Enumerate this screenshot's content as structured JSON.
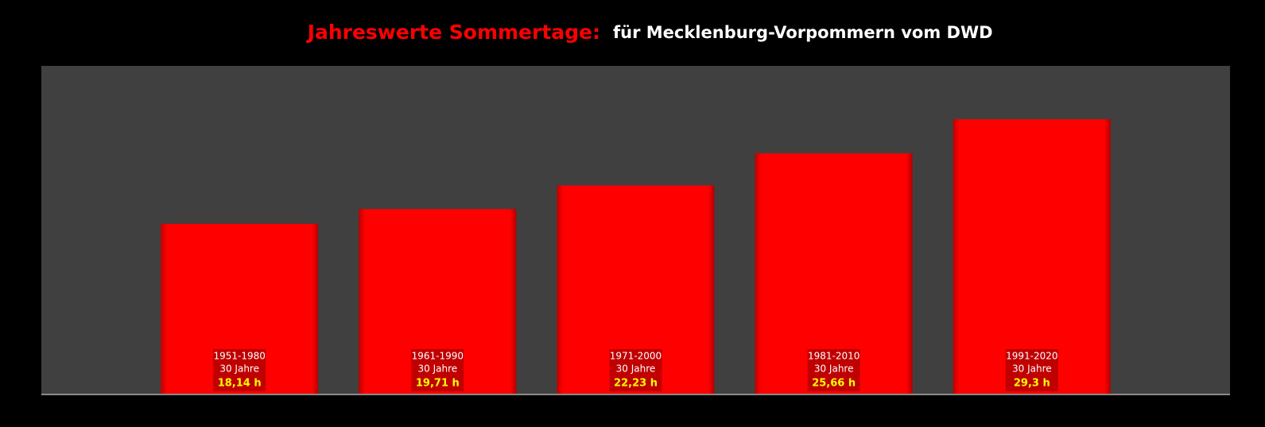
{
  "chart_data": {
    "type": "bar",
    "title": "Jahreswerte Sommertage:",
    "subtitle": "für Mecklenburg-Vorpommern vom DWD",
    "categories": [
      "1951-1980",
      "1961-1990",
      "1971-2000",
      "1981-2010",
      "1991-2020"
    ],
    "sublabels": [
      "30 Jahre",
      "30 Jahre",
      "30 Jahre",
      "30 Jahre",
      "30 Jahre"
    ],
    "values": [
      18.14,
      19.71,
      22.23,
      25.66,
      29.3
    ],
    "value_labels": [
      "18,14 h",
      "19,71 h",
      "22,23 h",
      "25,66 h",
      "29,3 h"
    ],
    "color": "#ff0000",
    "ylim": [
      0,
      35
    ]
  }
}
